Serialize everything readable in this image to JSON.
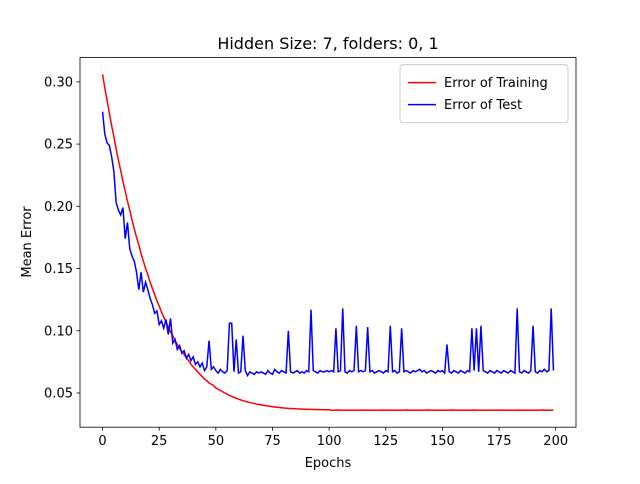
{
  "chart_data": {
    "type": "line",
    "title": "Hidden Size: 7, folders: 0, 1",
    "xlabel": "Epochs",
    "ylabel": "Mean Error",
    "xlim": [
      -9.95,
      208.95
    ],
    "ylim": [
      0.0225,
      0.3195
    ],
    "xticks": [
      0,
      25,
      50,
      75,
      100,
      125,
      150,
      175,
      200
    ],
    "yticks": [
      0.05,
      {
        "value": 0.1,
        "label": "0.10"
      },
      0.15,
      {
        "value": 0.2,
        "label": "0.20"
      },
      0.25,
      {
        "value": 0.3,
        "label": "0.30"
      }
    ],
    "legend": "upper right",
    "grid": false,
    "x": [
      0,
      1,
      2,
      3,
      4,
      5,
      6,
      7,
      8,
      9,
      10,
      11,
      12,
      13,
      14,
      15,
      16,
      17,
      18,
      19,
      20,
      21,
      22,
      23,
      24,
      25,
      26,
      27,
      28,
      29,
      30,
      31,
      32,
      33,
      34,
      35,
      36,
      37,
      38,
      39,
      40,
      41,
      42,
      43,
      44,
      45,
      46,
      47,
      48,
      49,
      50,
      51,
      52,
      53,
      54,
      55,
      56,
      57,
      58,
      59,
      60,
      61,
      62,
      63,
      64,
      65,
      66,
      67,
      68,
      69,
      70,
      71,
      72,
      73,
      74,
      75,
      76,
      77,
      78,
      79,
      80,
      81,
      82,
      83,
      84,
      85,
      86,
      87,
      88,
      89,
      90,
      91,
      92,
      93,
      94,
      95,
      96,
      97,
      98,
      99,
      100,
      101,
      102,
      103,
      104,
      105,
      106,
      107,
      108,
      109,
      110,
      111,
      112,
      113,
      114,
      115,
      116,
      117,
      118,
      119,
      120,
      121,
      122,
      123,
      124,
      125,
      126,
      127,
      128,
      129,
      130,
      131,
      132,
      133,
      134,
      135,
      136,
      137,
      138,
      139,
      140,
      141,
      142,
      143,
      144,
      145,
      146,
      147,
      148,
      149,
      150,
      151,
      152,
      153,
      154,
      155,
      156,
      157,
      158,
      159,
      160,
      161,
      162,
      163,
      164,
      165,
      166,
      167,
      168,
      169,
      170,
      171,
      172,
      173,
      174,
      175,
      176,
      177,
      178,
      179,
      180,
      181,
      182,
      183,
      184,
      185,
      186,
      187,
      188,
      189,
      190,
      191,
      192,
      193,
      194,
      195,
      196,
      197,
      198,
      199
    ],
    "series": [
      {
        "name": "Error of Training",
        "color": "#ff0000",
        "values": [
          0.306,
          0.295,
          0.285,
          0.275,
          0.265,
          0.256,
          0.246,
          0.237,
          0.229,
          0.22,
          0.212,
          0.204,
          0.197,
          0.189,
          0.182,
          0.175,
          0.169,
          0.162,
          0.156,
          0.15,
          0.145,
          0.139,
          0.134,
          0.129,
          0.124,
          0.12,
          0.115,
          0.111,
          0.107,
          0.103,
          0.099,
          0.096,
          0.092,
          0.089,
          0.086,
          0.083,
          0.081,
          0.078,
          0.076,
          0.073,
          0.071,
          0.069,
          0.067,
          0.065,
          0.063,
          0.061,
          0.06,
          0.058,
          0.057,
          0.056,
          0.054,
          0.053,
          0.052,
          0.051,
          0.05,
          0.049,
          0.048,
          0.0472,
          0.0464,
          0.0457,
          0.045,
          0.0444,
          0.0438,
          0.0433,
          0.0428,
          0.0423,
          0.0419,
          0.0415,
          0.0411,
          0.0407,
          0.0404,
          0.0401,
          0.0398,
          0.0395,
          0.0392,
          0.0389,
          0.0387,
          0.0385,
          0.0383,
          0.0381,
          0.0379,
          0.0378,
          0.0376,
          0.0375,
          0.0374,
          0.0373,
          0.0372,
          0.0371,
          0.037,
          0.037,
          0.0369,
          0.0368,
          0.0368,
          0.0367,
          0.0367,
          0.0366,
          0.0366,
          0.0366,
          0.0365,
          0.0365,
          0.0365,
          0.0362,
          0.0361,
          0.0362,
          0.0363,
          0.0362,
          0.0361,
          0.0362,
          0.0362,
          0.0361,
          0.0362,
          0.0362,
          0.0361,
          0.0362,
          0.0363,
          0.0362,
          0.0361,
          0.0362,
          0.0362,
          0.0361,
          0.0362,
          0.0362,
          0.0361,
          0.0362,
          0.0363,
          0.0362,
          0.0361,
          0.0362,
          0.0362,
          0.0361,
          0.0362,
          0.0362,
          0.0361,
          0.0362,
          0.0363,
          0.0362,
          0.0361,
          0.0362,
          0.0362,
          0.0361,
          0.0362,
          0.0362,
          0.0361,
          0.0362,
          0.0363,
          0.0362,
          0.0361,
          0.0362,
          0.0362,
          0.0361,
          0.0362,
          0.0362,
          0.0361,
          0.0362,
          0.0363,
          0.0362,
          0.0361,
          0.0362,
          0.0362,
          0.0361,
          0.0362,
          0.0362,
          0.0361,
          0.0362,
          0.0363,
          0.0362,
          0.0361,
          0.0362,
          0.0362,
          0.0361,
          0.0362,
          0.0362,
          0.0361,
          0.0362,
          0.0363,
          0.0362,
          0.0361,
          0.0362,
          0.0362,
          0.0361,
          0.0362,
          0.0362,
          0.0361,
          0.0362,
          0.0363,
          0.0362,
          0.0361,
          0.0362,
          0.0362,
          0.0361,
          0.0362,
          0.0362,
          0.0361,
          0.0362,
          0.0363,
          0.0362,
          0.0361,
          0.0362,
          0.0362,
          0.0361
        ]
      },
      {
        "name": "Error of Test",
        "color": "#0000ff",
        "values": [
          0.276,
          0.258,
          0.251,
          0.249,
          0.24,
          0.228,
          0.203,
          0.197,
          0.193,
          0.199,
          0.174,
          0.187,
          0.166,
          0.16,
          0.156,
          0.147,
          0.133,
          0.147,
          0.131,
          0.139,
          0.133,
          0.126,
          0.121,
          0.114,
          0.116,
          0.105,
          0.108,
          0.102,
          0.109,
          0.097,
          0.11,
          0.09,
          0.093,
          0.085,
          0.088,
          0.082,
          0.084,
          0.078,
          0.081,
          0.076,
          0.079,
          0.073,
          0.075,
          0.071,
          0.074,
          0.068,
          0.071,
          0.092,
          0.069,
          0.071,
          0.068,
          0.066,
          0.069,
          0.067,
          0.066,
          0.068,
          0.106,
          0.106,
          0.067,
          0.093,
          0.066,
          0.067,
          0.096,
          0.068,
          0.064,
          0.067,
          0.066,
          0.065,
          0.067,
          0.066,
          0.067,
          0.066,
          0.065,
          0.068,
          0.066,
          0.065,
          0.069,
          0.067,
          0.066,
          0.068,
          0.067,
          0.066,
          0.1,
          0.067,
          0.066,
          0.067,
          0.068,
          0.066,
          0.067,
          0.066,
          0.068,
          0.067,
          0.117,
          0.068,
          0.067,
          0.066,
          0.068,
          0.067,
          0.067,
          0.068,
          0.067,
          0.068,
          0.067,
          0.102,
          0.067,
          0.068,
          0.118,
          0.067,
          0.066,
          0.068,
          0.067,
          0.068,
          0.104,
          0.067,
          0.068,
          0.067,
          0.068,
          0.103,
          0.067,
          0.068,
          0.066,
          0.067,
          0.068,
          0.067,
          0.066,
          0.068,
          0.067,
          0.104,
          0.067,
          0.068,
          0.066,
          0.067,
          0.102,
          0.067,
          0.068,
          0.067,
          0.066,
          0.068,
          0.067,
          0.068,
          0.069,
          0.067,
          0.068,
          0.066,
          0.067,
          0.068,
          0.067,
          0.066,
          0.068,
          0.067,
          0.068,
          0.066,
          0.089,
          0.067,
          0.066,
          0.068,
          0.067,
          0.066,
          0.068,
          0.067,
          0.066,
          0.068,
          0.067,
          0.102,
          0.068,
          0.102,
          0.067,
          0.104,
          0.068,
          0.067,
          0.066,
          0.068,
          0.067,
          0.066,
          0.068,
          0.067,
          0.066,
          0.068,
          0.067,
          0.066,
          0.068,
          0.067,
          0.066,
          0.118,
          0.067,
          0.066,
          0.068,
          0.067,
          0.066,
          0.068,
          0.104,
          0.067,
          0.066,
          0.068,
          0.067,
          0.069,
          0.067,
          0.068,
          0.118,
          0.068
        ]
      }
    ]
  }
}
